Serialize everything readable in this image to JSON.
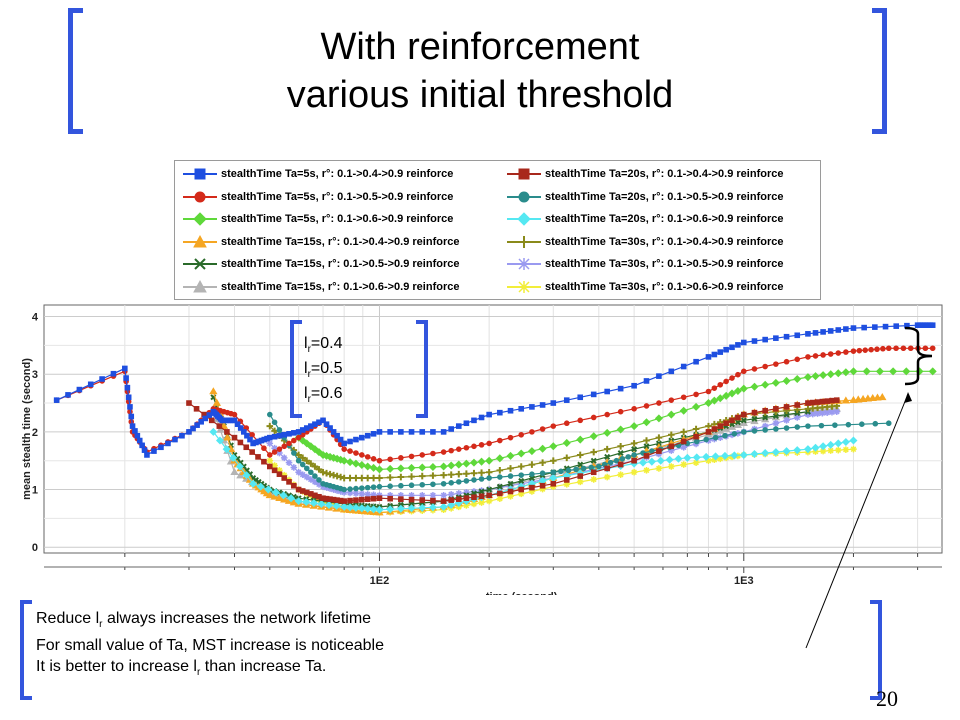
{
  "slide": {
    "title_line1": "With reinforcement",
    "title_line2": "various initial threshold",
    "page_number": "20"
  },
  "callout": {
    "lr_labels": [
      "=0.4",
      "=0.5",
      "=0.6"
    ],
    "lr_sub": "r",
    "lr_letter": "l"
  },
  "notes": {
    "line1_pre": "Reduce l",
    "line1_sub": "r",
    "line1_post": " always increases the network lifetime",
    "line2": "For small value of Ta, MST increase is noticeable",
    "line3_pre": "It is better to increase l",
    "line3_sub": "r",
    "line3_post": " than increase Ta."
  },
  "chart_data": {
    "type": "line",
    "xscale": "log",
    "xlabel": "time (second)",
    "ylabel": "mean stealth time (second)",
    "xticks": [
      "1E2",
      "1E3"
    ],
    "yticks": [
      "0",
      "1",
      "2",
      "3",
      "4"
    ],
    "xlim": [
      12,
      3500
    ],
    "ylim": [
      -0.1,
      4.2
    ],
    "grid": true,
    "legend_position": "top",
    "series": [
      {
        "name": "stealthTime Ta=5s, r°: 0.1->0.4->0.9 reinforce",
        "color": "#1f4fe0",
        "marker": "square",
        "x": [
          13,
          20,
          21,
          23,
          30,
          35,
          37,
          40,
          45,
          50,
          60,
          70,
          80,
          100,
          150,
          200,
          300,
          500,
          800,
          1000,
          1500,
          2000,
          3000,
          3300
        ],
        "y": [
          2.55,
          3.1,
          2.1,
          1.6,
          2.0,
          2.35,
          2.2,
          2.2,
          1.8,
          1.9,
          2.0,
          2.2,
          1.8,
          2.0,
          2.0,
          2.3,
          2.5,
          2.8,
          3.3,
          3.55,
          3.7,
          3.8,
          3.85,
          3.85
        ]
      },
      {
        "name": "stealthTime Ta=20s, r°: 0.1->0.4->0.9 reinforce",
        "color": "#a8281c",
        "marker": "square",
        "x": [
          30,
          40,
          50,
          60,
          70,
          80,
          100,
          150,
          200,
          300,
          500,
          800,
          1000,
          1500,
          1800
        ],
        "y": [
          2.5,
          1.9,
          1.4,
          1.0,
          0.85,
          0.8,
          0.85,
          0.8,
          0.9,
          1.1,
          1.5,
          2.0,
          2.3,
          2.5,
          2.55
        ]
      },
      {
        "name": "stealthTime Ta=5s, r°: 0.1->0.5->0.9 reinforce",
        "color": "#d42a1a",
        "marker": "circle",
        "x": [
          13,
          20,
          21,
          23,
          30,
          35,
          40,
          50,
          60,
          70,
          80,
          100,
          150,
          200,
          300,
          500,
          800,
          1000,
          1500,
          2000,
          2500,
          3300
        ],
        "y": [
          2.55,
          3.05,
          2.0,
          1.65,
          2.0,
          2.4,
          2.3,
          1.6,
          1.9,
          2.2,
          1.7,
          1.5,
          1.65,
          1.8,
          2.1,
          2.4,
          2.7,
          3.05,
          3.3,
          3.4,
          3.45,
          3.45
        ]
      },
      {
        "name": "stealthTime Ta=20s, r°: 0.1->0.5->0.9 reinforce",
        "color": "#2a8c8c",
        "marker": "circle",
        "x": [
          50,
          60,
          70,
          80,
          100,
          150,
          200,
          300,
          400,
          500,
          700,
          1000,
          1500,
          2500
        ],
        "y": [
          2.3,
          1.5,
          1.1,
          1.0,
          1.05,
          1.1,
          1.2,
          1.3,
          1.4,
          1.6,
          1.8,
          2.0,
          2.1,
          2.15
        ]
      },
      {
        "name": "stealthTime Ta=5s, r°: 0.1->0.6->0.9 reinforce",
        "color": "#5fd83a",
        "marker": "diamond",
        "x": [
          60,
          70,
          80,
          100,
          150,
          200,
          300,
          500,
          800,
          1000,
          1500,
          2000,
          3300
        ],
        "y": [
          1.9,
          1.6,
          1.5,
          1.35,
          1.4,
          1.5,
          1.75,
          2.1,
          2.5,
          2.75,
          2.95,
          3.05,
          3.05
        ]
      },
      {
        "name": "stealthTime Ta=20s, r°: 0.1->0.6->0.9 reinforce",
        "color": "#55e8f2",
        "marker": "diamond",
        "x": [
          35,
          45,
          60,
          80,
          100,
          150,
          200,
          300,
          500,
          700,
          1000,
          1500,
          2000
        ],
        "y": [
          2.0,
          1.1,
          0.8,
          0.7,
          0.65,
          0.7,
          0.9,
          1.2,
          1.45,
          1.55,
          1.6,
          1.7,
          1.85
        ]
      },
      {
        "name": "stealthTime Ta=15s, r°: 0.1->0.4->0.9 reinforce",
        "color": "#f5a623",
        "marker": "triangle",
        "x": [
          35,
          40,
          45,
          50,
          60,
          80,
          100,
          150,
          200,
          300,
          500,
          800,
          1000,
          1500,
          2000,
          2400
        ],
        "y": [
          2.7,
          1.5,
          1.1,
          0.9,
          0.75,
          0.65,
          0.6,
          0.7,
          0.9,
          1.2,
          1.6,
          2.0,
          2.3,
          2.5,
          2.55,
          2.6
        ]
      },
      {
        "name": "stealthTime Ta=30s, r°: 0.1->0.4->0.9 reinforce",
        "color": "#8a8a1a",
        "marker": "plus",
        "x": [
          50,
          60,
          70,
          80,
          100,
          150,
          200,
          300,
          500,
          800,
          1000,
          1500,
          1800
        ],
        "y": [
          2.1,
          1.6,
          1.3,
          1.2,
          1.2,
          1.25,
          1.3,
          1.5,
          1.8,
          2.1,
          2.3,
          2.4,
          2.45
        ]
      },
      {
        "name": "stealthTime Ta=15s, r°: 0.1->0.5->0.9 reinforce",
        "color": "#2a6a2a",
        "marker": "cross",
        "x": [
          35,
          40,
          45,
          50,
          60,
          80,
          100,
          150,
          200,
          300,
          500,
          800,
          1000,
          1500
        ],
        "y": [
          2.6,
          1.6,
          1.2,
          1.0,
          0.85,
          0.75,
          0.7,
          0.8,
          1.0,
          1.3,
          1.7,
          2.0,
          2.2,
          2.35
        ]
      },
      {
        "name": "stealthTime Ta=30s, r°: 0.1->0.5->0.9 reinforce",
        "color": "#9a9af0",
        "marker": "star",
        "x": [
          50,
          60,
          70,
          80,
          100,
          150,
          200,
          300,
          500,
          800,
          1000,
          1500,
          1800
        ],
        "y": [
          1.8,
          1.3,
          1.05,
          0.95,
          0.9,
          0.9,
          1.0,
          1.2,
          1.5,
          1.85,
          2.0,
          2.3,
          2.35
        ]
      },
      {
        "name": "stealthTime Ta=15s, r°: 0.1->0.6->0.9 reinforce",
        "color": "#b4b4b4",
        "marker": "triangle",
        "x": [
          35,
          40,
          50,
          60,
          80,
          100,
          150,
          200,
          300,
          500,
          800,
          1000,
          1500,
          1800
        ],
        "y": [
          2.4,
          1.3,
          0.95,
          0.8,
          0.7,
          0.7,
          0.8,
          1.0,
          1.25,
          1.6,
          1.95,
          2.15,
          2.35,
          2.4
        ]
      },
      {
        "name": "stealthTime Ta=30s, r°: 0.1->0.6->0.9 reinforce",
        "color": "#f2ee3a",
        "marker": "star",
        "x": [
          50,
          60,
          70,
          80,
          100,
          150,
          200,
          300,
          500,
          800,
          1000,
          1500,
          2000
        ],
        "y": [
          1.5,
          1.0,
          0.8,
          0.65,
          0.6,
          0.65,
          0.8,
          1.05,
          1.3,
          1.5,
          1.6,
          1.65,
          1.7
        ]
      }
    ]
  }
}
